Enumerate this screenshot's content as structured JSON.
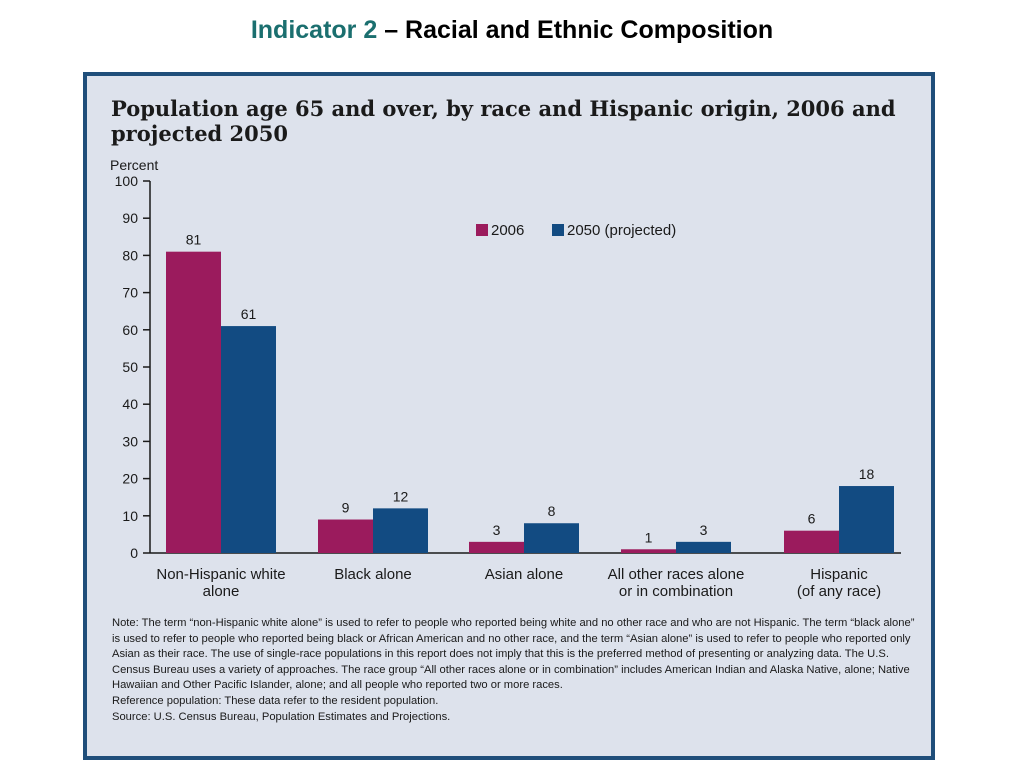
{
  "slide": {
    "title_accent": "Indicator 2",
    "title_rest": " – Racial and Ethnic Composition"
  },
  "colors": {
    "series_2006": "#9b1b5d",
    "series_2050": "#124b82",
    "panel_bg": "#dde2ec",
    "panel_border": "#1f4e7a",
    "title_accent": "#1b6f6f"
  },
  "chart_data": {
    "type": "bar",
    "title": "Population age 65 and over, by race and Hispanic origin, 2006 and projected 2050",
    "ylabel": "Percent",
    "xlabel": "",
    "ylim": [
      0,
      100
    ],
    "yticks": [
      0,
      10,
      20,
      30,
      40,
      50,
      60,
      70,
      80,
      90,
      100
    ],
    "grid": false,
    "legend_position": "top-right",
    "categories": [
      [
        "Non-Hispanic white",
        "alone"
      ],
      [
        "Black alone"
      ],
      [
        "Asian alone"
      ],
      [
        "All other races alone",
        "or in combination"
      ],
      [
        "Hispanic",
        "(of any race)"
      ]
    ],
    "series": [
      {
        "name": "2006",
        "values": [
          81,
          9,
          3,
          1,
          6
        ]
      },
      {
        "name": "2050 (projected)",
        "values": [
          61,
          12,
          8,
          3,
          18
        ]
      }
    ]
  },
  "notes": {
    "note": "Note: The term “non-Hispanic white alone” is used to refer to people who reported being white and no other race and who are not Hispanic. The term “black alone” is used to refer to people who reported being black or African American and no other race, and the term “Asian alone” is used to refer to people who reported only Asian as their race.  The use of single-race populations in this report does not imply that this is the preferred method of presenting or analyzing data. The U.S. Census Bureau uses a variety of approaches. The race group “All other races alone or in combination” includes American Indian and Alaska Native, alone; Native Hawaiian and Other Pacific Islander, alone; and all people who reported two or more races.",
    "reference": "Reference population: These data refer to the resident population.",
    "source": "Source:  U.S. Census Bureau, Population Estimates and Projections."
  }
}
